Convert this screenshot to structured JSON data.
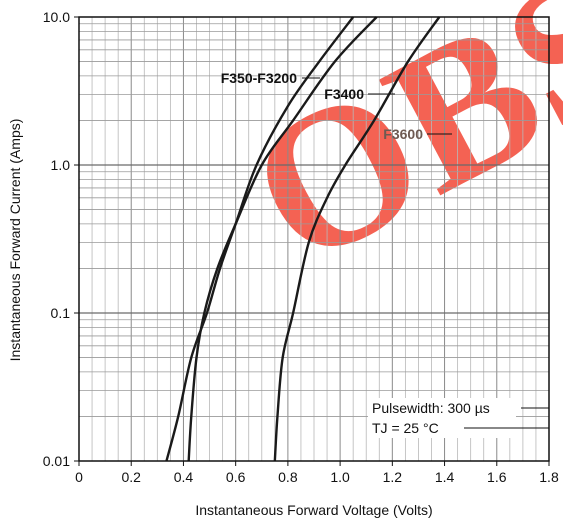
{
  "chart_data": {
    "type": "line",
    "xlabel": "Instantaneous Forward Voltage (Volts)",
    "ylabel": "Instantaneous Forward Current (Amps)",
    "xlim": [
      0,
      1.8
    ],
    "ylim": [
      0.01,
      10
    ],
    "yscale": "log",
    "grid": true,
    "x_ticks": [
      "0",
      "0.2",
      "0.4",
      "0.6",
      "0.8",
      "1.0",
      "1.2",
      "1.4",
      "1.6",
      "1.8"
    ],
    "y_ticks": [
      "0.01",
      "0.1",
      "1.0",
      "10.0"
    ],
    "series": [
      {
        "name": "F350-F3200",
        "color": "#1a1a1a",
        "points": [
          [
            0.335,
            0.01
          ],
          [
            0.38,
            0.02
          ],
          [
            0.43,
            0.05
          ],
          [
            0.49,
            0.1
          ],
          [
            0.54,
            0.2
          ],
          [
            0.6,
            0.4
          ],
          [
            0.68,
            1.0
          ],
          [
            0.8,
            2.5
          ],
          [
            0.92,
            5.0
          ],
          [
            1.05,
            10.0
          ]
        ]
      },
      {
        "name": "F3400",
        "color": "#1a1a1a",
        "points": [
          [
            0.42,
            0.01
          ],
          [
            0.43,
            0.02
          ],
          [
            0.45,
            0.05
          ],
          [
            0.48,
            0.1
          ],
          [
            0.53,
            0.2
          ],
          [
            0.6,
            0.4
          ],
          [
            0.7,
            1.0
          ],
          [
            0.82,
            2.0
          ],
          [
            0.98,
            5.0
          ],
          [
            1.14,
            10.0
          ]
        ]
      },
      {
        "name": "F3600",
        "color": "#1a1a1a",
        "points": [
          [
            0.75,
            0.01
          ],
          [
            0.76,
            0.02
          ],
          [
            0.78,
            0.05
          ],
          [
            0.82,
            0.1
          ],
          [
            0.88,
            0.3
          ],
          [
            0.95,
            0.6
          ],
          [
            1.02,
            1.0
          ],
          [
            1.13,
            2.0
          ],
          [
            1.26,
            5.0
          ],
          [
            1.38,
            10.0
          ]
        ]
      }
    ],
    "annotations": {
      "pulsewidth": "Pulsewidth: 300 µs",
      "tj": "TJ = 25 °C"
    }
  },
  "watermark": {
    "text": "OBS",
    "color": "#f45a4a"
  }
}
